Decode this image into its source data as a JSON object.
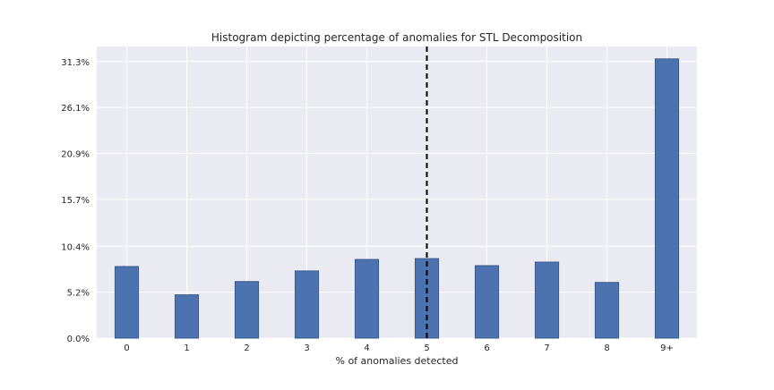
{
  "chart_data": {
    "type": "bar",
    "title": "Histogram depicting percentage of anomalies for STL Decomposition",
    "xlabel": "% of anomalies detected",
    "ylabel": "",
    "categories": [
      "0",
      "1",
      "2",
      "3",
      "4",
      "5",
      "6",
      "7",
      "8",
      "9+"
    ],
    "values": [
      8.1,
      4.9,
      6.4,
      7.6,
      8.9,
      9.0,
      8.2,
      8.6,
      6.3,
      31.6
    ],
    "value_unit": "%",
    "ylim": [
      0,
      33.0
    ],
    "yticks": [
      0,
      5.2,
      10.4,
      15.7,
      20.9,
      26.1,
      31.3
    ],
    "ytick_labels": [
      "0.0%",
      "5.2%",
      "10.4%",
      "15.7%",
      "20.9%",
      "26.1%",
      "31.3%"
    ],
    "reference_line": {
      "category_index": 5,
      "style": "dashed"
    },
    "grid": true,
    "colors": {
      "bar": "#4c72b0",
      "bar_edge": "#3b5a8c",
      "plot_background": "#eaeaf2",
      "grid": "#ffffff",
      "reference_line": "#000000"
    }
  }
}
